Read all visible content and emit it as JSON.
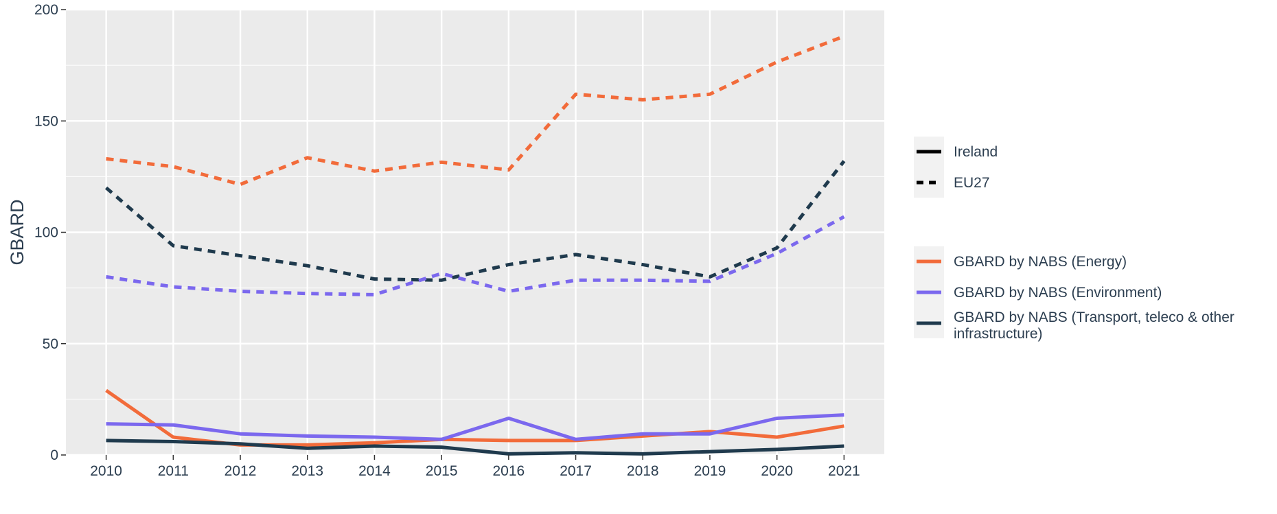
{
  "chart_data": {
    "type": "line",
    "title": "",
    "xlabel": "",
    "ylabel": "GBARD",
    "ylim": [
      0,
      200
    ],
    "yticks": [
      0,
      50,
      100,
      150,
      200
    ],
    "x": [
      2010,
      2011,
      2012,
      2013,
      2014,
      2015,
      2016,
      2017,
      2018,
      2019,
      2020,
      2021
    ],
    "grid": true,
    "legend_position": "right",
    "colors": {
      "energy": "#f26b3a",
      "environment": "#7b68ee",
      "transport": "#1f3a4d",
      "panel_bg": "#ebebeb",
      "grid": "#ffffff",
      "text": "#2c3e50"
    },
    "linetype_legend": [
      {
        "label": "Ireland",
        "dash": "solid"
      },
      {
        "label": "EU27",
        "dash": "dashed"
      }
    ],
    "color_legend": [
      {
        "key": "energy",
        "label": "GBARD by NABS (Energy)"
      },
      {
        "key": "environment",
        "label": "GBARD by NABS (Environment)"
      },
      {
        "key": "transport",
        "label_lines": [
          "GBARD by NABS (Transport, teleco & other",
          "infrastructure)"
        ]
      }
    ],
    "series": [
      {
        "region": "EU27",
        "key": "energy",
        "dash": "dashed",
        "values": [
          133,
          129.5,
          121.5,
          133.5,
          127.5,
          131.5,
          128,
          162,
          159.5,
          162,
          176.5,
          188
        ]
      },
      {
        "region": "EU27",
        "key": "transport",
        "dash": "dashed",
        "values": [
          120,
          94,
          89.5,
          85,
          79,
          78.5,
          85.5,
          90,
          85.5,
          80,
          93,
          132
        ]
      },
      {
        "region": "EU27",
        "key": "environment",
        "dash": "dashed",
        "values": [
          80,
          75.5,
          73.5,
          72.5,
          72,
          81.5,
          73.5,
          78.5,
          78.5,
          78,
          90.5,
          107
        ]
      },
      {
        "region": "Ireland",
        "key": "energy",
        "dash": "solid",
        "values": [
          29,
          8,
          4.5,
          4.5,
          5.5,
          7,
          6.5,
          6.5,
          8.5,
          10.5,
          8,
          13
        ]
      },
      {
        "region": "Ireland",
        "key": "environment",
        "dash": "solid",
        "values": [
          14,
          13.5,
          9.5,
          8.5,
          8,
          7,
          16.5,
          7,
          9.5,
          9.5,
          16.5,
          18
        ]
      },
      {
        "region": "Ireland",
        "key": "transport",
        "dash": "solid",
        "values": [
          6.5,
          6,
          5,
          3,
          4,
          3.5,
          0.5,
          1,
          0.5,
          1.5,
          2.5,
          4
        ]
      }
    ]
  }
}
